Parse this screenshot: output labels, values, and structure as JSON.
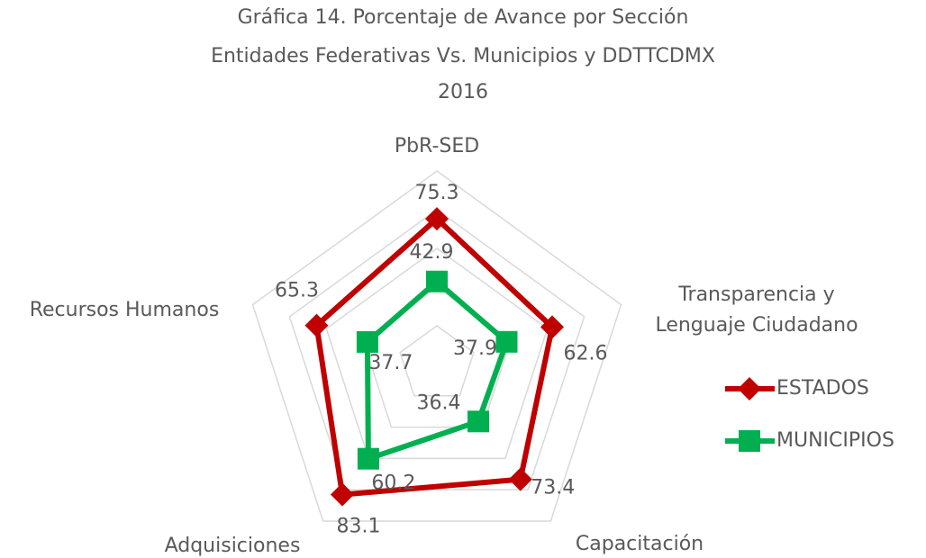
{
  "chart_data": {
    "type": "radar",
    "title": [
      "Gráfica 14. Porcentaje de Avance por Sección",
      "Entidades Federativas Vs. Municipios y DDTTCDMX",
      "2016"
    ],
    "categories": [
      "PbR-SED",
      [
        "Transparencia y",
        "Lenguaje Ciudadano"
      ],
      "Capacitación",
      "Adquisiciones",
      "Recursos Humanos"
    ],
    "series": [
      {
        "name": "ESTADOS",
        "color": "#c00000",
        "marker": "diamond",
        "values": [
          75.3,
          62.6,
          73.4,
          83.1,
          65.3
        ]
      },
      {
        "name": "MUNICIPIOS",
        "color": "#00b050",
        "marker": "square",
        "values": [
          42.9,
          37.9,
          36.4,
          60.2,
          37.7
        ]
      }
    ],
    "rlim": [
      0,
      100
    ],
    "rticks": [
      20,
      40,
      60,
      80,
      100
    ],
    "grid": true,
    "legend": "right"
  }
}
